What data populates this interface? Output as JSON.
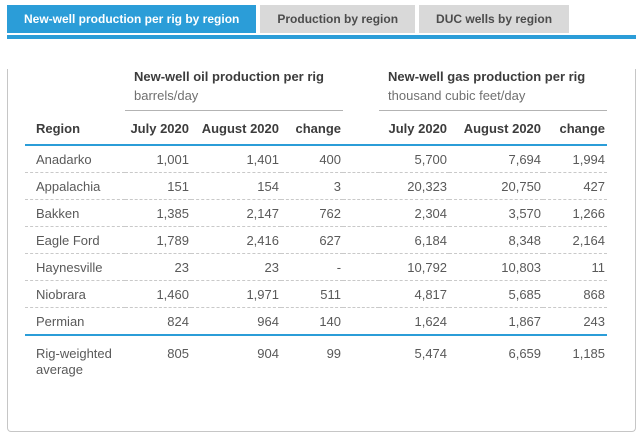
{
  "tabs": {
    "items": [
      {
        "label": "New-well production per rig by region",
        "active": true
      },
      {
        "label": "Production by region",
        "active": false
      },
      {
        "label": "DUC wells by region",
        "active": false
      }
    ]
  },
  "colors": {
    "accent": "#2b9dd8",
    "inactive_tab_bg": "#d9d9d9"
  },
  "table": {
    "region_header": "Region",
    "oil_group": {
      "title": "New-well oil production per rig",
      "subtitle": "barrels/day"
    },
    "gas_group": {
      "title": "New-well gas production per rig",
      "subtitle": "thousand cubic feet/day"
    },
    "columns": {
      "jul": "July 2020",
      "aug": "August 2020",
      "chg": "change"
    },
    "rows": [
      {
        "region": "Anadarko",
        "oil_jul": "1,001",
        "oil_aug": "1,401",
        "oil_chg": "400",
        "gas_jul": "5,700",
        "gas_aug": "7,694",
        "gas_chg": "1,994"
      },
      {
        "region": "Appalachia",
        "oil_jul": "151",
        "oil_aug": "154",
        "oil_chg": "3",
        "gas_jul": "20,323",
        "gas_aug": "20,750",
        "gas_chg": "427"
      },
      {
        "region": "Bakken",
        "oil_jul": "1,385",
        "oil_aug": "2,147",
        "oil_chg": "762",
        "gas_jul": "2,304",
        "gas_aug": "3,570",
        "gas_chg": "1,266"
      },
      {
        "region": "Eagle Ford",
        "oil_jul": "1,789",
        "oil_aug": "2,416",
        "oil_chg": "627",
        "gas_jul": "6,184",
        "gas_aug": "8,348",
        "gas_chg": "2,164"
      },
      {
        "region": "Haynesville",
        "oil_jul": "23",
        "oil_aug": "23",
        "oil_chg": "-",
        "gas_jul": "10,792",
        "gas_aug": "10,803",
        "gas_chg": "11"
      },
      {
        "region": "Niobrara",
        "oil_jul": "1,460",
        "oil_aug": "1,971",
        "oil_chg": "511",
        "gas_jul": "4,817",
        "gas_aug": "5,685",
        "gas_chg": "868"
      },
      {
        "region": "Permian",
        "oil_jul": "824",
        "oil_aug": "964",
        "oil_chg": "140",
        "gas_jul": "1,624",
        "gas_aug": "1,867",
        "gas_chg": "243"
      }
    ],
    "footer": {
      "region": "Rig-weighted average",
      "oil_jul": "805",
      "oil_aug": "904",
      "oil_chg": "99",
      "gas_jul": "5,474",
      "gas_aug": "6,659",
      "gas_chg": "1,185"
    }
  }
}
